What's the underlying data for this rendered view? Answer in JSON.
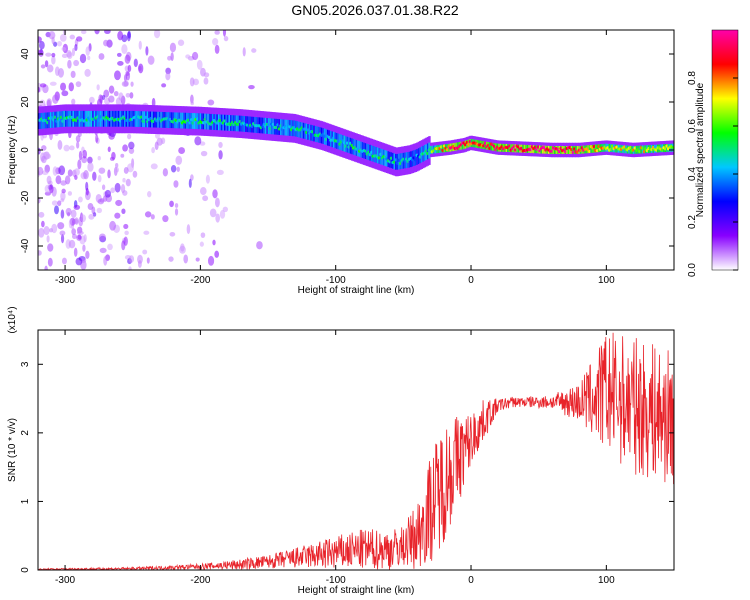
{
  "figure_title": "GN05.2026.037.01.38.R22",
  "chart_data": [
    {
      "type": "heatmap",
      "xlabel": "Height of straight line (km)",
      "ylabel": "Frequency (Hz)",
      "xlim": [
        -320,
        150
      ],
      "ylim": [
        -50,
        50
      ],
      "xticks": [
        -300,
        -200,
        -100,
        0,
        100
      ],
      "yticks": [
        -40,
        -20,
        0,
        20,
        40
      ],
      "grid": false,
      "colorbar": {
        "label": "Normalized spectral amplitude",
        "range": [
          0,
          1
        ],
        "ticks": [
          "0.0",
          "0.2",
          "0.4",
          "0.6",
          "0.8"
        ],
        "colormap": [
          "#ffffff",
          "#8800ff",
          "#0000ff",
          "#00c8ff",
          "#00ff00",
          "#ffff00",
          "#ff0000",
          "#ff00aa"
        ]
      },
      "ridge": {
        "x": [
          -320,
          -300,
          -250,
          -200,
          -170,
          -150,
          -130,
          -110,
          -90,
          -70,
          -55,
          -45,
          -40,
          -30,
          -15,
          -5,
          0,
          20,
          60,
          80,
          100,
          120,
          150
        ],
        "freq": [
          12,
          13,
          13,
          12,
          11,
          10,
          9,
          6,
          2,
          -2,
          -5,
          -4,
          -3,
          0,
          1,
          2,
          3,
          1,
          0,
          0,
          1,
          0,
          1
        ],
        "peak_amplitude": [
          0.45,
          0.5,
          0.45,
          0.5,
          0.45,
          0.45,
          0.45,
          0.45,
          0.5,
          0.5,
          0.45,
          0.4,
          0.35,
          0.55,
          0.9,
          0.9,
          0.85,
          0.9,
          0.95,
          0.9,
          0.7,
          0.7,
          0.7
        ]
      }
    },
    {
      "type": "line",
      "xlabel": "Height of straight line (km)",
      "ylabel": "SNR (10 * v/v)",
      "y_multiplier": "(x10⁴)",
      "xlim": [
        -320,
        150
      ],
      "ylim": [
        0,
        3.5
      ],
      "xticks": [
        -300,
        -200,
        -100,
        0,
        100
      ],
      "yticks": [
        0,
        1,
        2,
        3
      ],
      "grid": false,
      "series": [
        {
          "color": "#e8232a",
          "envelope_x": [
            -320,
            -250,
            -200,
            -170,
            -150,
            -120,
            -100,
            -80,
            -60,
            -50,
            -40,
            -30,
            -20,
            -10,
            0,
            10,
            20,
            30,
            40,
            60,
            80,
            90,
            100,
            120,
            150
          ],
          "envelope_mean": [
            0.01,
            0.02,
            0.05,
            0.08,
            0.12,
            0.2,
            0.25,
            0.3,
            0.3,
            0.35,
            0.5,
            0.9,
            1.3,
            1.6,
            1.9,
            2.2,
            2.4,
            2.45,
            2.45,
            2.45,
            2.45,
            2.5,
            2.6,
            2.4,
            2.2
          ],
          "envelope_spread": [
            0.01,
            0.02,
            0.04,
            0.08,
            0.1,
            0.18,
            0.25,
            0.3,
            0.3,
            0.3,
            0.5,
            0.8,
            0.9,
            0.7,
            0.4,
            0.3,
            0.1,
            0.08,
            0.08,
            0.1,
            0.3,
            0.6,
            0.9,
            1.0,
            1.0
          ]
        }
      ]
    }
  ]
}
